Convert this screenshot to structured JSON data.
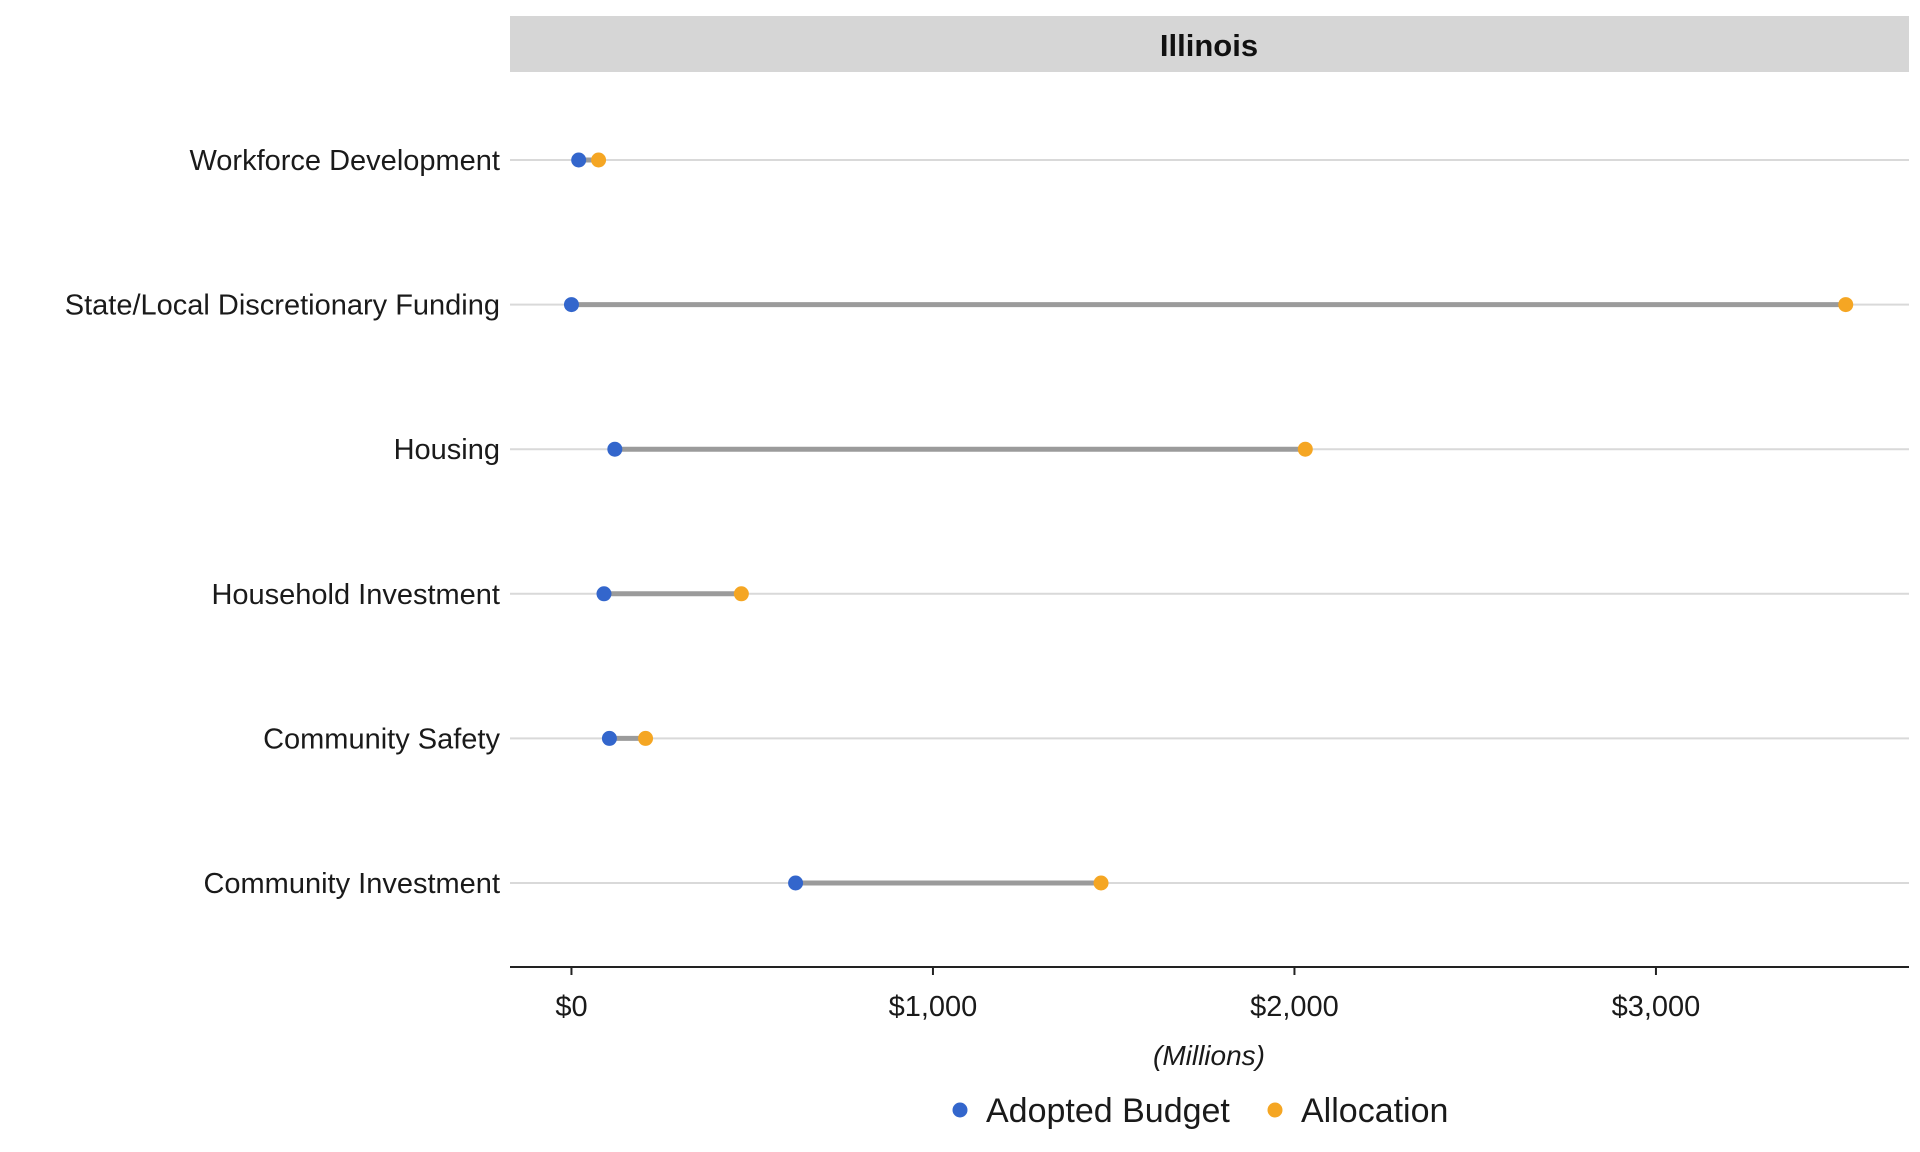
{
  "chart_data": {
    "type": "dumbbell",
    "facet": "Illinois",
    "xlabel": "(Millions)",
    "xlim": [
      -170,
      3700
    ],
    "xticks": [
      {
        "value": 0,
        "label": "$0"
      },
      {
        "value": 1000,
        "label": "$1,000"
      },
      {
        "value": 2000,
        "label": "$2,000"
      },
      {
        "value": 3000,
        "label": "$3,000"
      }
    ],
    "categories": [
      "Workforce Development",
      "State/Local Discretionary Funding",
      "Housing",
      "Household Investment",
      "Community Safety",
      "Community Investment"
    ],
    "series": [
      {
        "name": "Adopted Budget",
        "color": "#3366cc",
        "values": [
          20,
          0,
          120,
          90,
          105,
          620
        ]
      },
      {
        "name": "Allocation",
        "color": "#f5a623",
        "values": [
          75,
          3525,
          2030,
          470,
          205,
          1465
        ]
      }
    ],
    "legend_position": "bottom",
    "grid": "horizontal"
  }
}
